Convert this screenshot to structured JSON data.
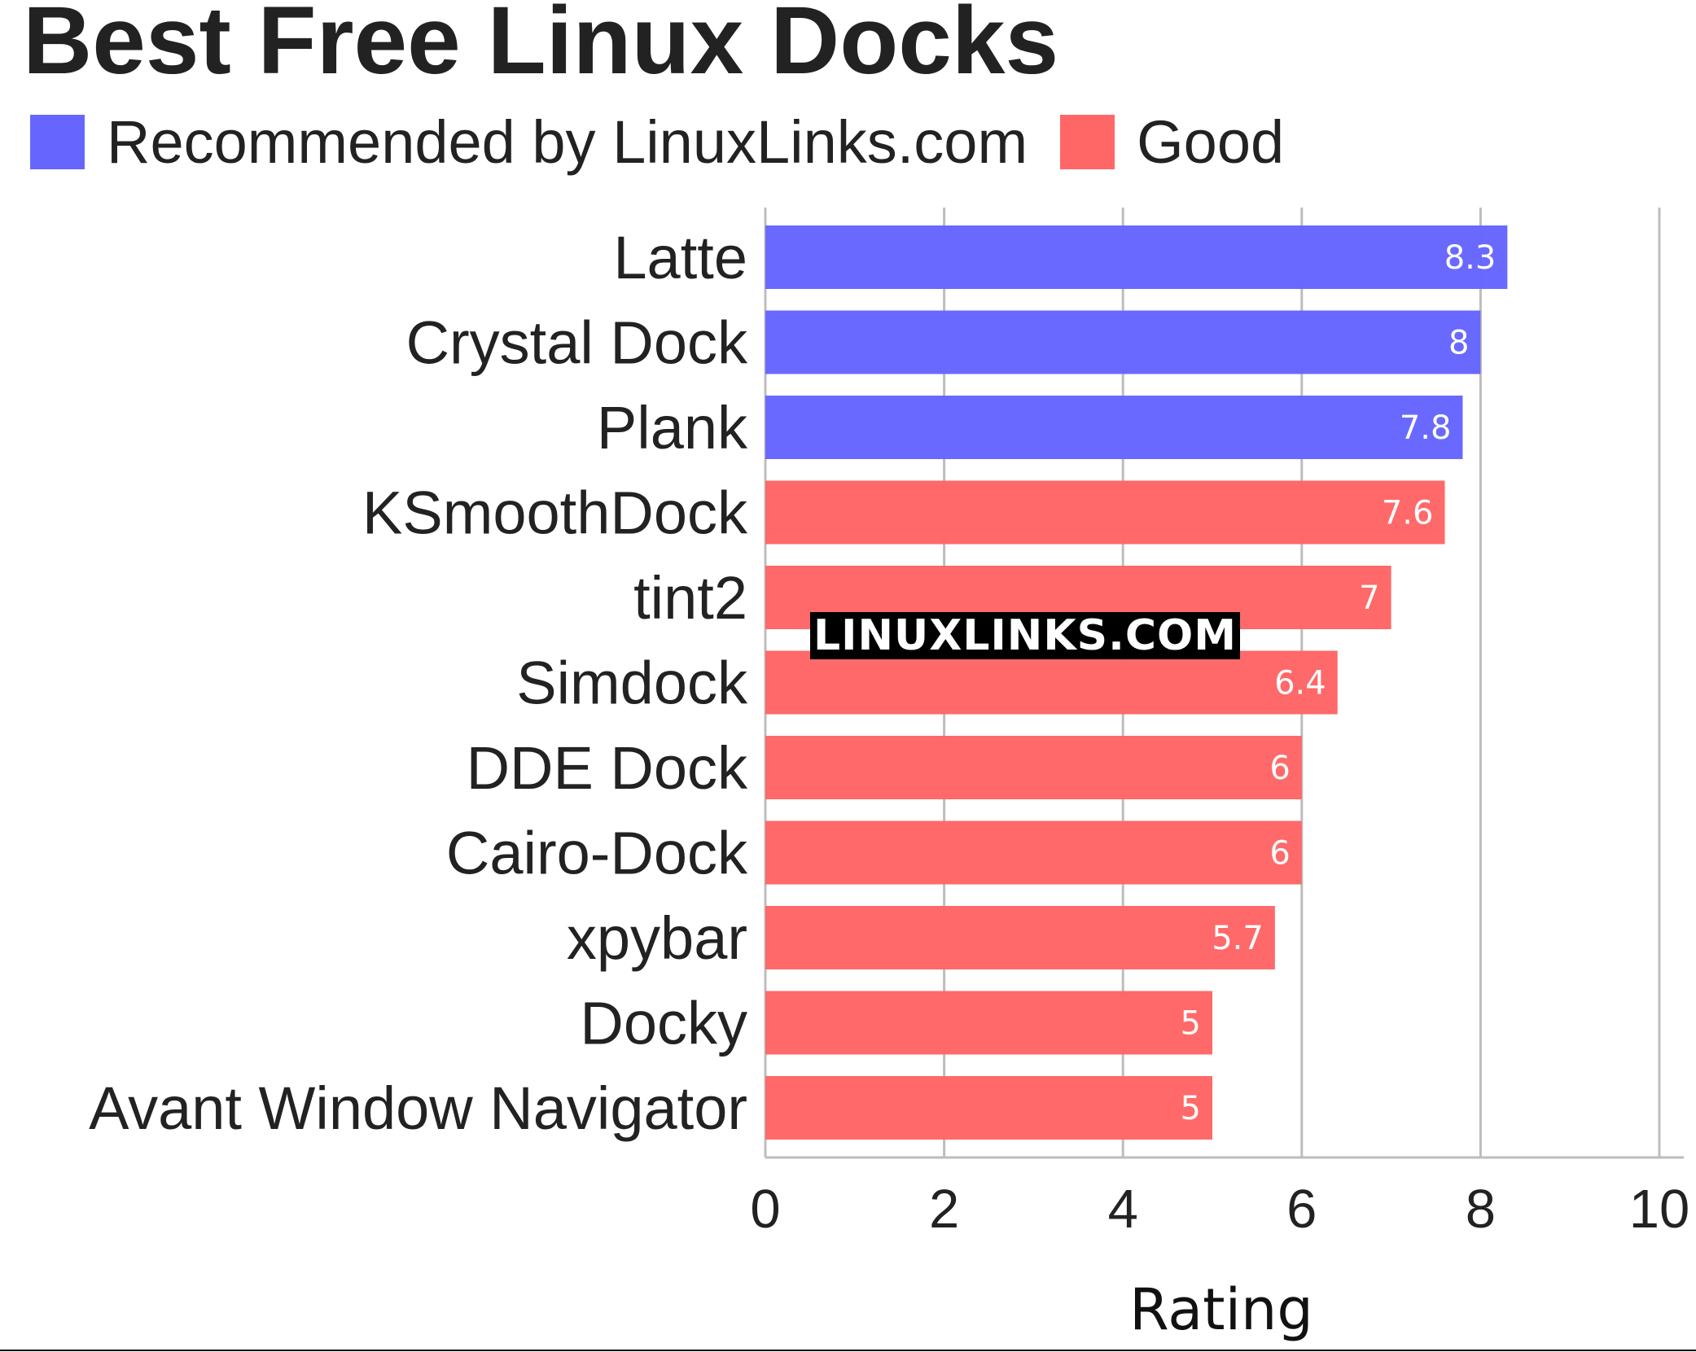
{
  "chart_data": {
    "type": "bar",
    "orientation": "horizontal",
    "title": "Best Free Linux Docks",
    "xlabel": "Rating",
    "ylabel": "",
    "xlim": [
      0,
      10
    ],
    "x_ticks": [
      0,
      2,
      4,
      6,
      8,
      10
    ],
    "grid": true,
    "legend_position": "top-left",
    "legend": [
      {
        "label": "Recommended by LinuxLinks.com",
        "color": "#6666ff"
      },
      {
        "label": "Good",
        "color": "#ff6666"
      }
    ],
    "categories": [
      "Latte",
      "Crystal Dock",
      "Plank",
      "KSmoothDock",
      "tint2",
      "Simdock",
      "DDE Dock",
      "Cairo-Dock",
      "xpybar",
      "Docky",
      "Avant Window Navigator"
    ],
    "values": [
      8.3,
      8,
      7.8,
      7.6,
      7,
      6.4,
      6,
      6,
      5.7,
      5,
      5
    ],
    "value_labels": [
      "8.3",
      "8",
      "7.8",
      "7.6",
      "7",
      "6.4",
      "6",
      "6",
      "5.7",
      "5",
      "5"
    ],
    "groups": [
      0,
      0,
      0,
      1,
      1,
      1,
      1,
      1,
      1,
      1,
      1
    ]
  },
  "watermark": "LINUXLINKS.COM"
}
